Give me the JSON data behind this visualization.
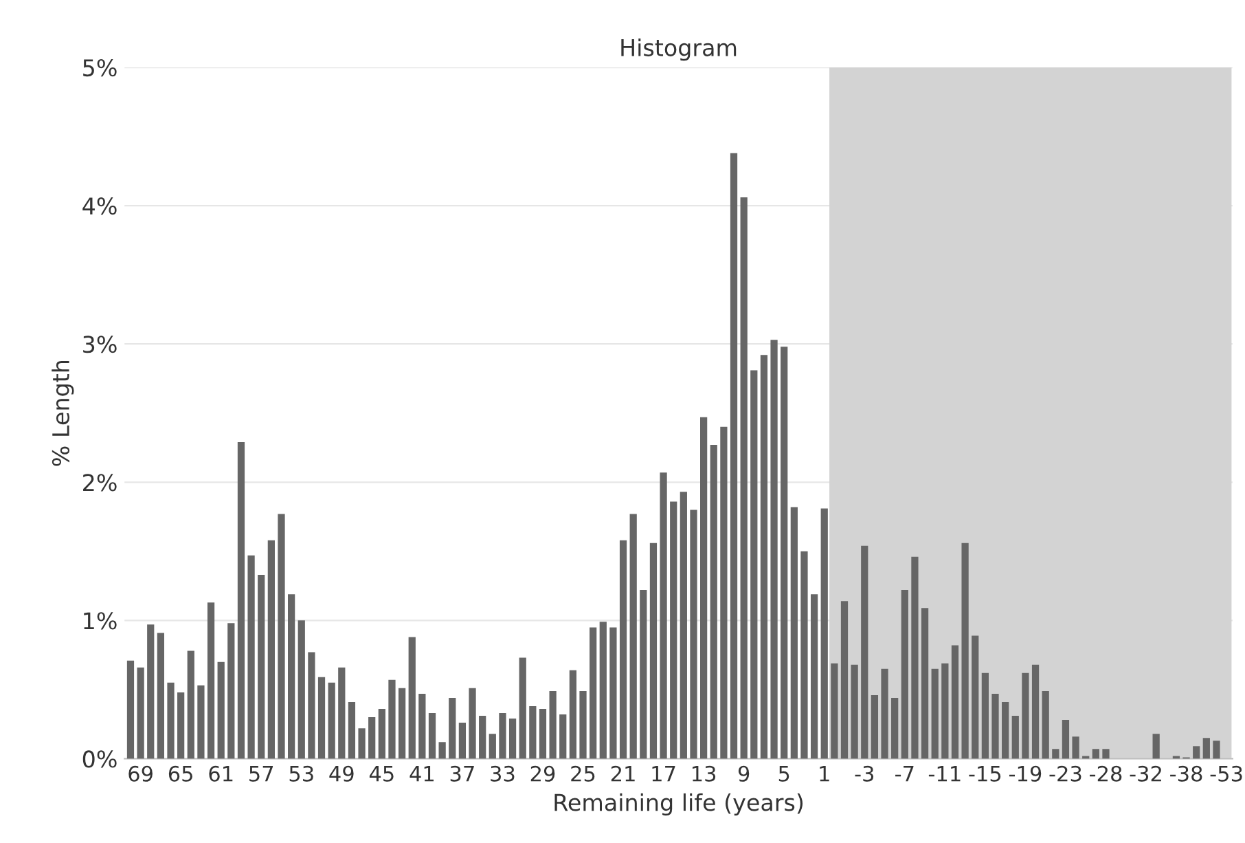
{
  "chart_data": {
    "type": "bar",
    "title": "Histogram",
    "xlabel": "Remaining life (years)",
    "ylabel": "% Length",
    "categories": [
      null,
      "69",
      null,
      null,
      null,
      "65",
      null,
      null,
      null,
      "61",
      null,
      null,
      null,
      "57",
      null,
      null,
      null,
      "53",
      null,
      null,
      null,
      "49",
      null,
      null,
      null,
      "45",
      null,
      null,
      null,
      "41",
      null,
      null,
      null,
      "37",
      null,
      null,
      null,
      "33",
      null,
      null,
      null,
      "29",
      null,
      null,
      null,
      "25",
      null,
      null,
      null,
      "21",
      null,
      null,
      null,
      "17",
      null,
      null,
      null,
      "13",
      null,
      null,
      null,
      "9",
      null,
      null,
      null,
      "5",
      null,
      null,
      null,
      "1",
      null,
      null,
      null,
      "-3",
      null,
      null,
      null,
      "-7",
      null,
      null,
      null,
      "-11",
      null,
      null,
      null,
      "-15",
      null,
      null,
      null,
      "-19",
      null,
      null,
      null,
      "-23",
      null,
      null,
      null,
      "-28",
      null,
      null,
      null,
      "-32",
      null,
      null,
      null,
      "-38",
      null,
      null,
      null,
      "-53"
    ],
    "values": [
      0.71,
      0.66,
      0.97,
      0.91,
      0.55,
      0.48,
      0.78,
      0.53,
      1.13,
      0.7,
      0.98,
      2.29,
      1.47,
      1.33,
      1.58,
      1.77,
      1.19,
      1.0,
      0.77,
      0.59,
      0.55,
      0.66,
      0.41,
      0.22,
      0.3,
      0.36,
      0.57,
      0.51,
      0.88,
      0.47,
      0.33,
      0.12,
      0.44,
      0.26,
      0.51,
      0.31,
      0.18,
      0.33,
      0.29,
      0.73,
      0.38,
      0.36,
      0.49,
      0.32,
      0.64,
      0.49,
      0.95,
      0.99,
      0.95,
      1.58,
      1.77,
      1.22,
      1.56,
      2.07,
      1.86,
      1.93,
      1.8,
      2.47,
      2.27,
      2.4,
      4.38,
      4.06,
      2.81,
      2.92,
      3.03,
      2.98,
      1.82,
      1.5,
      1.19,
      1.81,
      0.69,
      1.14,
      0.68,
      1.54,
      0.46,
      0.65,
      0.44,
      1.22,
      1.46,
      1.09,
      0.65,
      0.69,
      0.82,
      1.56,
      0.89,
      0.62,
      0.47,
      0.41,
      0.31,
      0.62,
      0.68,
      0.49,
      0.07,
      0.28,
      0.16,
      0.02,
      0.07,
      0.07,
      0,
      0,
      0,
      0,
      0.18,
      0,
      0.02,
      0.01,
      0.09,
      0.15,
      0.13,
      0
    ],
    "color": "#666666",
    "ylim": [
      0,
      5
    ],
    "yticks": [
      {
        "value": 0,
        "label": "0%"
      },
      {
        "value": 1,
        "label": "1%"
      },
      {
        "value": 2,
        "label": "2%"
      },
      {
        "value": 3,
        "label": "3%"
      },
      {
        "value": 4,
        "label": "4%"
      },
      {
        "value": 5,
        "label": "5%"
      }
    ],
    "grid": "y",
    "bands": [
      {
        "axis": "x",
        "from": "1",
        "to": "-53",
        "color": "#d3d3d3"
      }
    ]
  }
}
